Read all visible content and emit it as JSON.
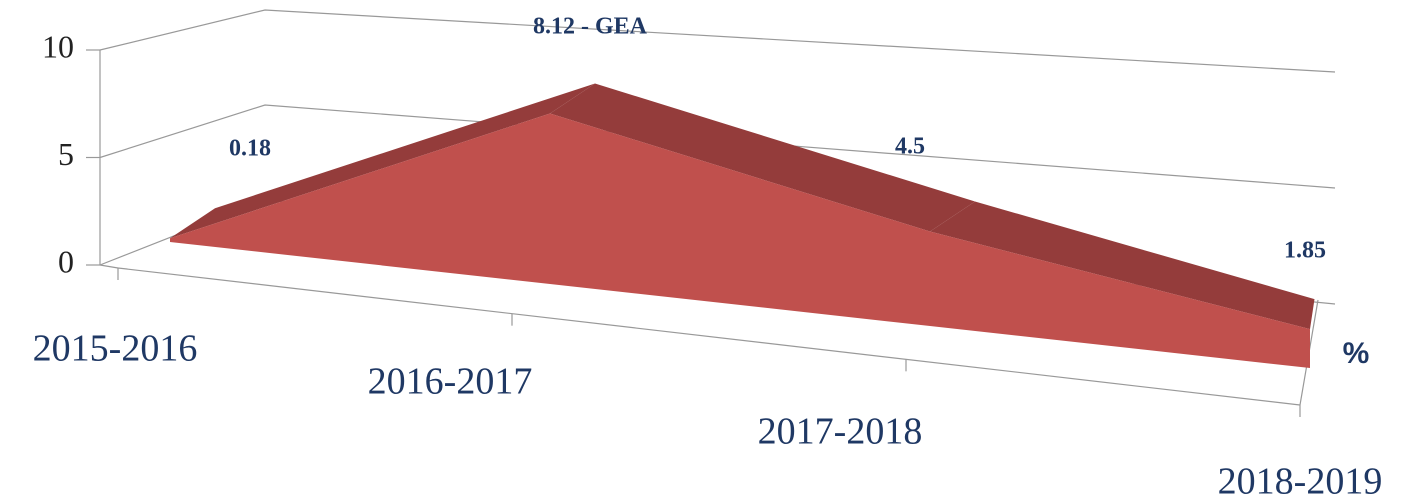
{
  "chart_data": {
    "type": "area3d",
    "categories": [
      "2015-2016",
      "2016-2017",
      "2017-2018",
      "2018-2019"
    ],
    "series": [
      {
        "name": "%",
        "color": "#c0504d",
        "values": [
          0.18,
          8.12,
          4.5,
          1.85
        ],
        "value_labels": [
          "0.18",
          "8.12 - GEA",
          "4.5",
          "1.85"
        ]
      }
    ],
    "ylim": [
      0,
      10
    ],
    "yticks": [
      0,
      5,
      10
    ],
    "grid": true
  }
}
